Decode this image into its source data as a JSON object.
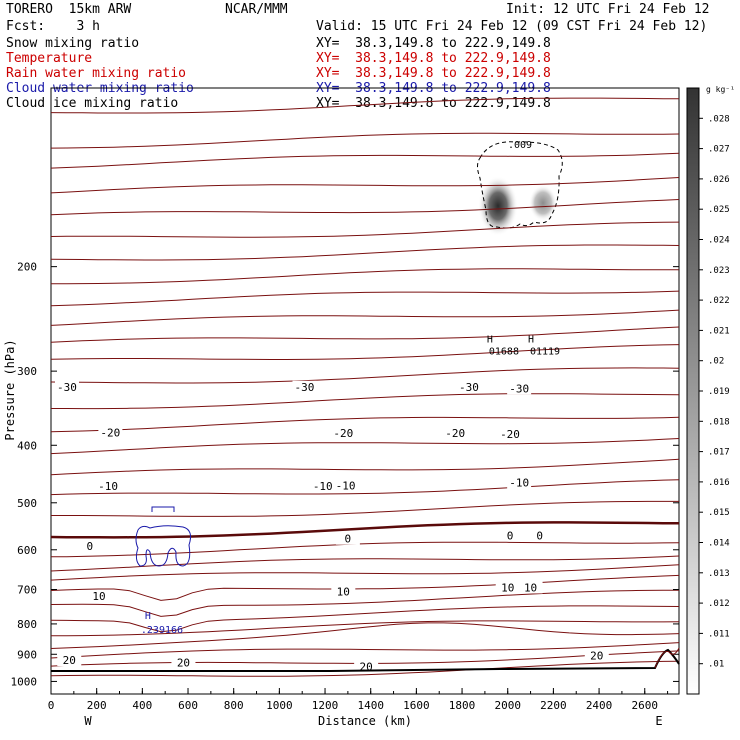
{
  "header": {
    "model": "TORERO  15km ARW",
    "center": "NCAR/MMM",
    "init": "Init: 12 UTC Fri 24 Feb 12",
    "fcst": "Fcst:    3 h",
    "valid": "Valid: 15 UTC Fri 24 Feb 12 (09 CST Fri 24 Feb 12)"
  },
  "legend": [
    {
      "label": "Snow mixing ratio",
      "xy": "XY=  38.3,149.8 to 222.9,149.8",
      "color": "#000000",
      "xy_color": "#000000"
    },
    {
      "label": "Temperature",
      "xy": "XY=  38.3,149.8 to 222.9,149.8",
      "color": "#cc0000",
      "xy_color": "#cc0000"
    },
    {
      "label": "Rain water mixing ratio",
      "xy": "XY=  38.3,149.8 to 222.9,149.8",
      "color": "#cc0000",
      "xy_color": "#cc0000"
    },
    {
      "label": "Cloud water mixing ratio",
      "xy": "XY=  38.3,149.8 to 222.9,149.8",
      "color": "#1a1aaa",
      "xy_color": "#1a1aaa"
    },
    {
      "label": "Cloud ice mixing ratio",
      "xy": "XY=  38.3,149.8 to 222.9,149.8",
      "color": "#000000",
      "xy_color": "#000000"
    }
  ],
  "chart_data": {
    "type": "contour",
    "xlabel": "Distance (km)",
    "ylabel": "Pressure (hPa)",
    "x_ticks": [
      "0",
      "200",
      "400",
      "600",
      "800",
      "1000",
      "1200",
      "1400",
      "1600",
      "1800",
      "2000",
      "2200",
      "2400",
      "2600"
    ],
    "y_ticks": [
      "200",
      "300",
      "400",
      "500",
      "600",
      "700",
      "800",
      "900",
      "1000"
    ],
    "xlim": [
      0,
      2750
    ],
    "ylim": [
      1050,
      100
    ],
    "y_scale": "log",
    "west_label": "W",
    "east_label": "E",
    "colorbar": {
      "unit": "g kg⁻¹",
      "ticks": [
        ".028",
        ".027",
        ".026",
        ".025",
        ".024",
        ".023",
        ".022",
        ".021",
        ".02",
        ".019",
        ".018",
        ".017",
        ".016",
        ".015",
        ".014",
        ".013",
        ".012",
        ".011",
        ".01"
      ],
      "range": [
        0.009,
        0.029
      ]
    },
    "temperature_contours": {
      "color": "#7a1010",
      "zero_color": "#5a0a0a",
      "labeled_levels": [
        "-30",
        "-20",
        "-10",
        "0",
        "10",
        "20"
      ],
      "label_placements": [
        {
          "text": "-30",
          "x": 70,
          "p": 320
        },
        {
          "text": "-30",
          "x": 1110,
          "p": 320
        },
        {
          "text": "-30",
          "x": 1830,
          "p": 320
        },
        {
          "text": "-30",
          "x": 2050,
          "p": 322
        },
        {
          "text": "-20",
          "x": 260,
          "p": 382
        },
        {
          "text": "-20",
          "x": 1280,
          "p": 383
        },
        {
          "text": "-20",
          "x": 1770,
          "p": 383
        },
        {
          "text": "-20",
          "x": 2010,
          "p": 384
        },
        {
          "text": "-10",
          "x": 250,
          "p": 470
        },
        {
          "text": "-10",
          "x": 1190,
          "p": 470
        },
        {
          "text": "-10",
          "x": 1290,
          "p": 469
        },
        {
          "text": "-10",
          "x": 2050,
          "p": 464
        },
        {
          "text": "0",
          "x": 170,
          "p": 593
        },
        {
          "text": "0",
          "x": 1300,
          "p": 577
        },
        {
          "text": "0",
          "x": 2010,
          "p": 570
        },
        {
          "text": "0",
          "x": 2140,
          "p": 570
        },
        {
          "text": "10",
          "x": 210,
          "p": 721
        },
        {
          "text": "10",
          "x": 1280,
          "p": 708
        },
        {
          "text": "10",
          "x": 2000,
          "p": 697
        },
        {
          "text": "10",
          "x": 2100,
          "p": 697
        },
        {
          "text": "20",
          "x": 80,
          "p": 924
        },
        {
          "text": "20",
          "x": 580,
          "p": 932
        },
        {
          "text": "20",
          "x": 1380,
          "p": 947
        },
        {
          "text": "20",
          "x": 2390,
          "p": 907
        }
      ]
    },
    "snow_maxima": [
      {
        "marker": "H",
        "value": "01688",
        "x": 1970,
        "p": 280
      },
      {
        "marker": "H",
        "value": "01119",
        "x": 2150,
        "p": 280
      }
    ],
    "snow_contour_label": ".009",
    "cloud_water_maximum": {
      "marker": "H",
      "value": ".239166",
      "x": 490,
      "p": 810
    }
  }
}
